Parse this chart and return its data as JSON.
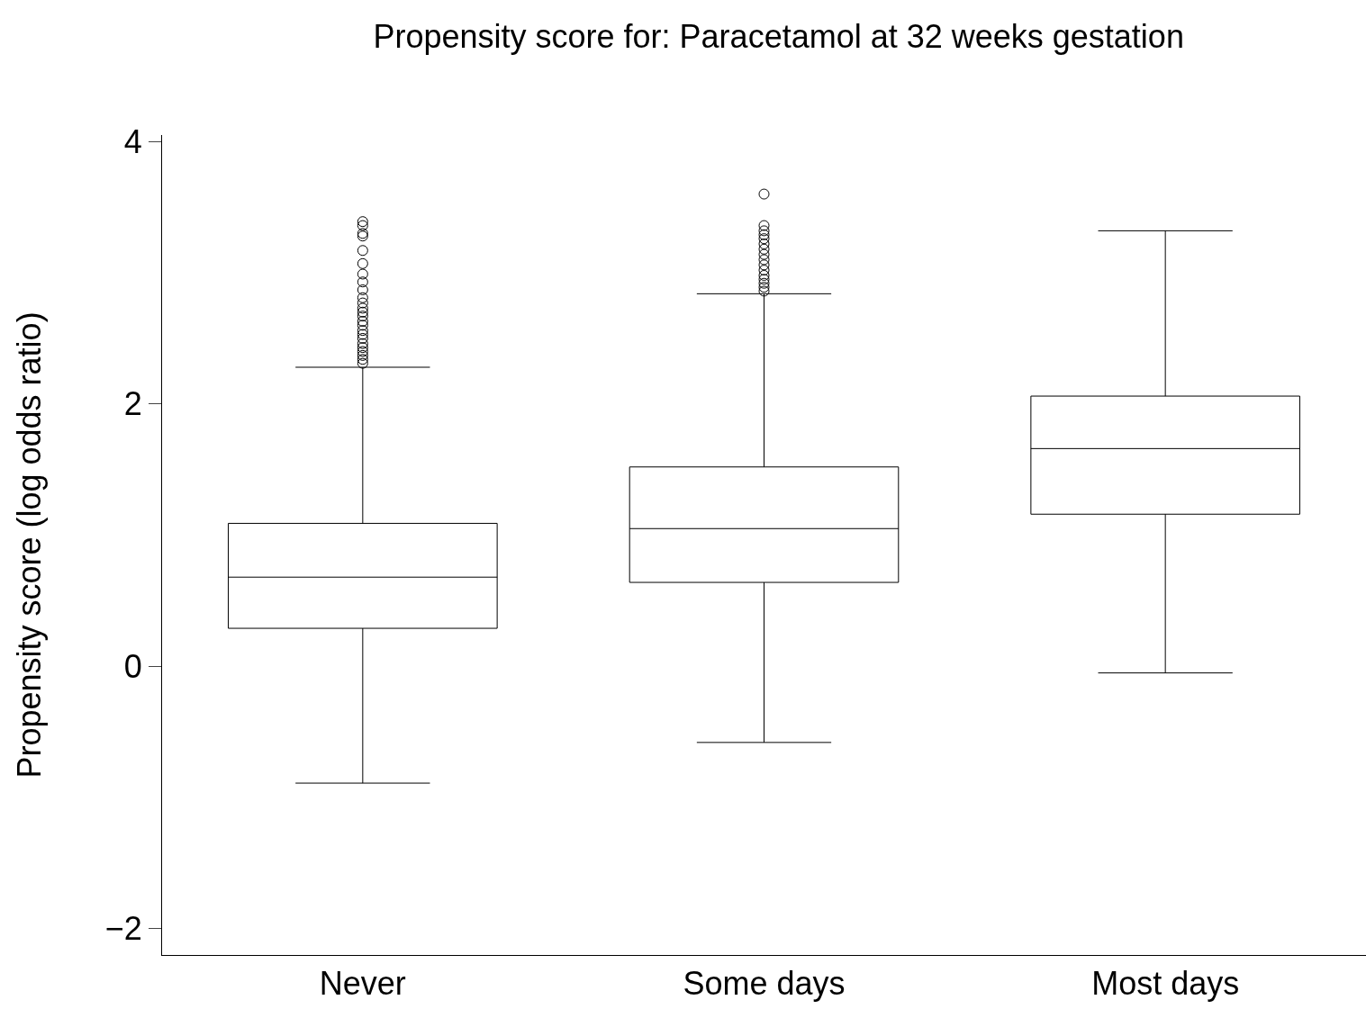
{
  "chart_data": {
    "type": "box",
    "title": "Propensity score for: Paracetamol at 32 weeks gestation",
    "ylabel": "Propensity score (log odds ratio)",
    "categories": [
      "Never",
      "Some days",
      "Most days"
    ],
    "boxes": [
      {
        "low": -0.89,
        "q1": 0.29,
        "median": 0.68,
        "q3": 1.09,
        "high": 2.28,
        "outliers": [
          2.31,
          2.34,
          2.37,
          2.4,
          2.43,
          2.46,
          2.5,
          2.53,
          2.56,
          2.6,
          2.63,
          2.67,
          2.7,
          2.73,
          2.77,
          2.81,
          2.87,
          2.93,
          2.99,
          3.07,
          3.17,
          3.28,
          3.3,
          3.36,
          3.39
        ]
      },
      {
        "low": -0.58,
        "q1": 0.64,
        "median": 1.05,
        "q3": 1.52,
        "high": 2.84,
        "outliers": [
          2.86,
          2.89,
          2.92,
          2.95,
          2.98,
          3.02,
          3.06,
          3.1,
          3.14,
          3.18,
          3.22,
          3.26,
          3.29,
          3.32,
          3.36,
          3.6
        ]
      },
      {
        "low": -0.05,
        "q1": 1.16,
        "median": 1.66,
        "q3": 2.06,
        "high": 3.32
      }
    ],
    "color": "#000000",
    "ylim": [
      -2.2,
      4.05
    ],
    "yticks": [
      {
        "value": -2,
        "label": "−2"
      },
      0,
      2,
      4
    ]
  }
}
